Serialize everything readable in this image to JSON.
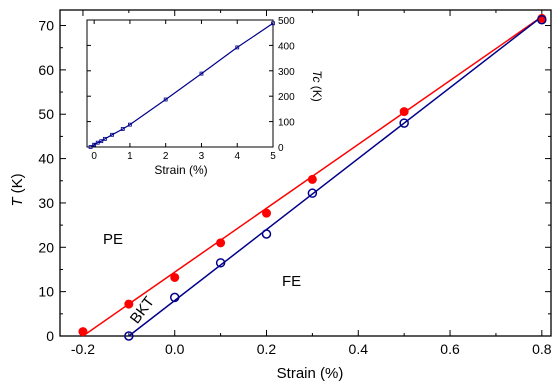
{
  "chart_data": [
    {
      "type": "scatter",
      "xlabel": "Strain (%)",
      "ylabel": "T (K)",
      "ylabel_italic": "T",
      "ylabel_unit": " (K)",
      "xlim": [
        -0.25,
        0.82
      ],
      "ylim": [
        0,
        73.5
      ],
      "xticks": [
        -0.2,
        0.0,
        0.2,
        0.4,
        0.6,
        0.8
      ],
      "xtick_labels": [
        "-0.2",
        "0.0",
        "0.2",
        "0.4",
        "0.6",
        "0.8"
      ],
      "yticks": [
        0,
        10,
        20,
        30,
        40,
        50,
        60,
        70
      ],
      "ytick_labels": [
        "0",
        "10",
        "20",
        "30",
        "40",
        "50",
        "60",
        "70"
      ],
      "grid": false,
      "series": [
        {
          "color": "#ff0000",
          "marker": "filled-circle",
          "x": [
            -0.2,
            -0.1,
            0.0,
            0.1,
            0.2,
            0.3,
            0.5,
            0.8
          ],
          "y": [
            1.0,
            7.2,
            13.2,
            21.0,
            27.7,
            35.3,
            50.6,
            71.6
          ],
          "fit_line": {
            "x": [
              -0.2,
              0.8
            ],
            "y": [
              0.0,
              72.0
            ]
          }
        },
        {
          "color": "#00008b",
          "marker": "open-circle",
          "x": [
            -0.1,
            0.0,
            0.1,
            0.2,
            0.3,
            0.5,
            0.8
          ],
          "y": [
            0.0,
            8.7,
            16.5,
            23.0,
            32.2,
            48.0,
            71.3
          ],
          "fit_line": {
            "x": [
              -0.1,
              0.8
            ],
            "y": [
              0.0,
              72.0
            ]
          }
        }
      ],
      "annotations": [
        "PE",
        "FE",
        "BKT"
      ]
    },
    {
      "type": "line",
      "xlabel": "Strain (%)",
      "ylabel": "Tc (K)",
      "ylabel_italic": "Tc",
      "ylabel_unit": " (K)",
      "xlim": [
        -0.2,
        5
      ],
      "ylim": [
        0,
        500
      ],
      "xticks": [
        0,
        1,
        2,
        3,
        4,
        5
      ],
      "xtick_labels": [
        "0",
        "1",
        "2",
        "3",
        "4",
        "5"
      ],
      "yticks": [
        0,
        100,
        200,
        300,
        400,
        500
      ],
      "ytick_labels": [
        "0",
        "100",
        "200",
        "300",
        "400",
        "500"
      ],
      "grid": false,
      "series": [
        {
          "color": "#00008b",
          "marker": "small-open-square",
          "x": [
            -0.1,
            0.0,
            0.1,
            0.2,
            0.3,
            0.5,
            0.8,
            1.0,
            2.0,
            3.0,
            4.0,
            5.0
          ],
          "y": [
            0,
            9,
            17,
            23,
            32,
            48,
            71,
            88,
            187,
            289,
            392,
            487
          ]
        }
      ]
    }
  ]
}
